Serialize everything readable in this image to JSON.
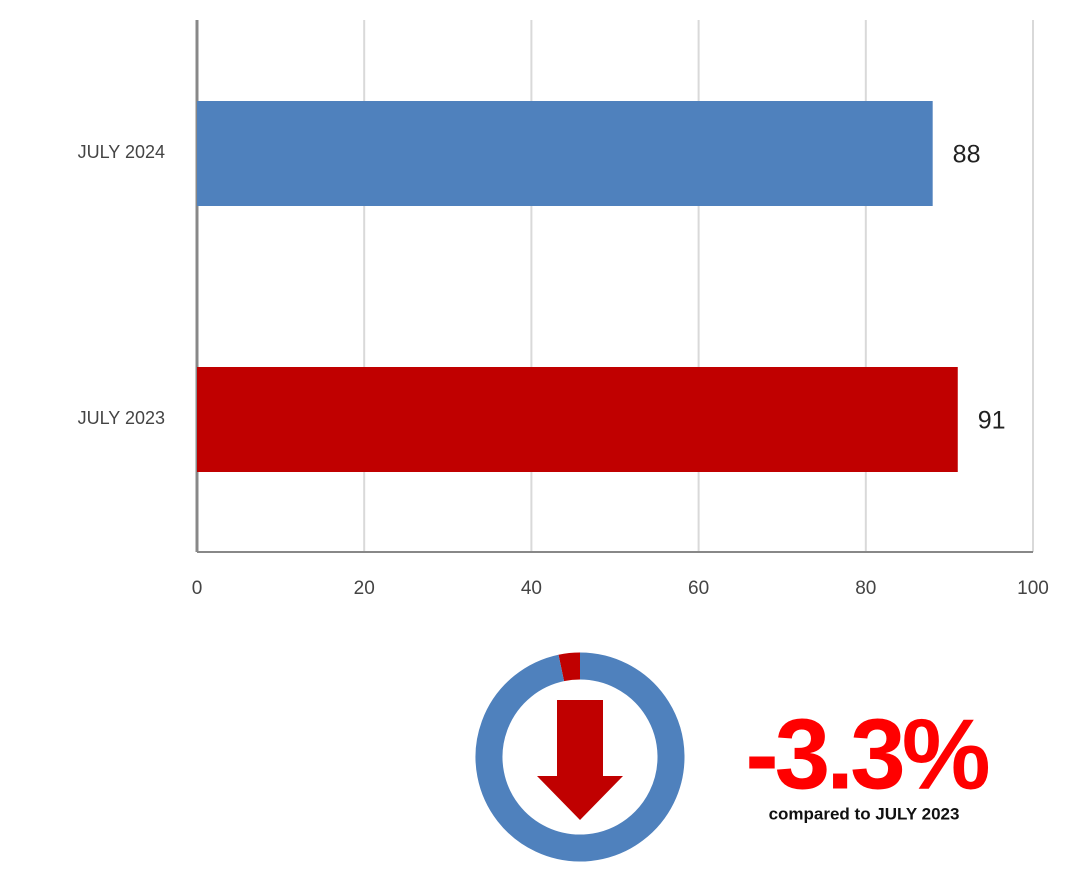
{
  "chart_data": [
    {
      "type": "barh",
      "categories": [
        "JULY 2024",
        "JULY 2023"
      ],
      "series": [
        {
          "values": [
            88,
            91
          ],
          "colors": [
            "#4f81bd",
            "#c00000"
          ]
        }
      ],
      "xlim": [
        0,
        100
      ],
      "xticks": [
        0,
        20,
        40,
        60,
        80,
        100
      ],
      "grid": true
    },
    {
      "type": "donut",
      "values": [
        3.3,
        96.7
      ],
      "colors": [
        "#c00000",
        "#4f81bd"
      ],
      "change": {
        "value": -3.3,
        "label": "-3.3%"
      },
      "note": "compared to JULY 2023"
    }
  ]
}
